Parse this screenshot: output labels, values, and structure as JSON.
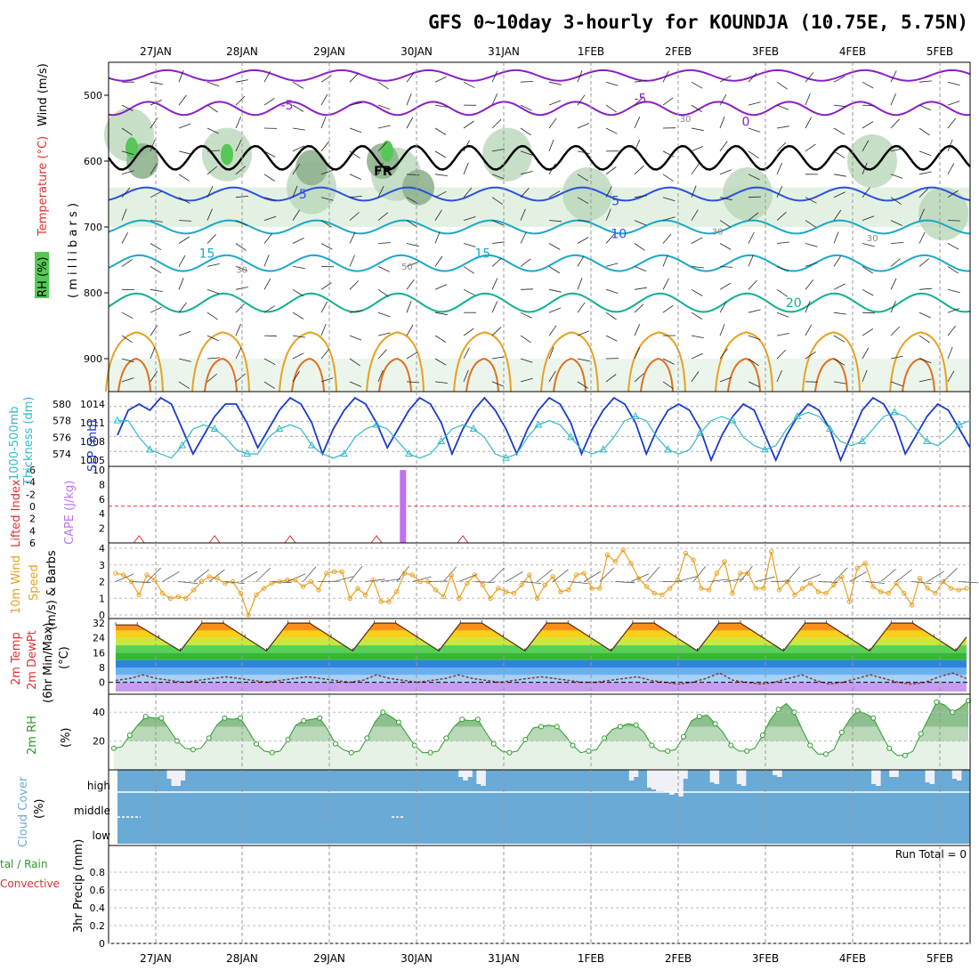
{
  "title": "GFS 0~10day 3-hourly for KOUNDJA (10.75E, 5.75N)",
  "dates": [
    "27JAN",
    "28JAN",
    "29JAN",
    "30JAN",
    "31JAN",
    "1FEB",
    "2FEB",
    "3FEB",
    "4FEB",
    "5FEB"
  ],
  "colors": {
    "rh_fill_light": "#e3f1e3",
    "rh_fill_mid": "#b9d7b9",
    "rh_fill_dark": "#8fb38f",
    "rh_fill_green": "#57c857",
    "temp_purple": "#8a1ec8",
    "temp_blue": "#2a50e0",
    "temp_cyan": "#1aa8c8",
    "temp_teal": "#10b090",
    "temp_orange": "#e8a020",
    "freeze": "#000000",
    "slp_line": "#1a3cc8",
    "thickness_line": "#30b8c8",
    "cape_bar": "#c070f0",
    "lifted_index": "#e03030",
    "wind10": "#e8a020",
    "rh2m": "#2a9a2a",
    "cloud": "#6aaad6",
    "precip_conv": "#e03030",
    "precip_total": "#2a9a2a"
  },
  "chart_data": [
    {
      "id": "upper_air",
      "type": "contour",
      "ylabel_parts": [
        "RH (%)",
        "Temperature (°C)",
        "Wind (m/s)"
      ],
      "ylabel_units": "( m i l l i b a r s )",
      "yticks": [
        500,
        600,
        700,
        800,
        900
      ],
      "ylim": [
        950,
        450
      ],
      "contour_labels": [
        {
          "label": "-5",
          "x": 0.2,
          "y": 515,
          "color": "temp_purple"
        },
        {
          "label": "-5",
          "x": 0.61,
          "y": 505,
          "color": "temp_purple"
        },
        {
          "label": "0",
          "x": 0.735,
          "y": 540,
          "color": "temp_purple"
        },
        {
          "label": "30",
          "x": 0.663,
          "y": 534,
          "color": "gray"
        },
        {
          "label": "FR",
          "x": 0.308,
          "y": 615,
          "color": "freeze"
        },
        {
          "label": "5",
          "x": 0.221,
          "y": 650,
          "color": "temp_blue"
        },
        {
          "label": "5",
          "x": 0.584,
          "y": 660,
          "color": "temp_blue"
        },
        {
          "label": "10",
          "x": 0.583,
          "y": 710,
          "color": "temp_blue"
        },
        {
          "label": "15",
          "x": 0.105,
          "y": 740,
          "color": "temp_cyan"
        },
        {
          "label": "15",
          "x": 0.425,
          "y": 740,
          "color": "temp_cyan"
        },
        {
          "label": "20",
          "x": 0.786,
          "y": 815,
          "color": "temp_teal"
        },
        {
          "label": "30",
          "x": 0.148,
          "y": 763,
          "color": "gray"
        },
        {
          "label": "50",
          "x": 0.34,
          "y": 758,
          "color": "gray"
        },
        {
          "label": "30",
          "x": 0.7,
          "y": 705,
          "color": "gray"
        },
        {
          "label": "30",
          "x": 0.88,
          "y": 715,
          "color": "gray"
        }
      ]
    },
    {
      "id": "slp_thickness",
      "type": "line",
      "ylabel_left": "1000-500mb Thickness (dm)",
      "ylabel_right": "SLP (mb)",
      "left_ticks": [
        574,
        576,
        578,
        580
      ],
      "right_ticks": [
        1005,
        1008,
        1011,
        1014
      ],
      "series": [
        {
          "name": "SLP",
          "color": "slp_line",
          "ylim": [
            1004,
            1016
          ],
          "values": [
            1009,
            1013,
            1014,
            1013,
            1015,
            1014,
            1010,
            1006,
            1009,
            1012,
            1014,
            1014,
            1011,
            1007,
            1010,
            1013,
            1015,
            1014,
            1011,
            1006,
            1010,
            1013,
            1015,
            1014,
            1011,
            1007,
            1010,
            1013,
            1015,
            1014,
            1011,
            1006,
            1010,
            1013,
            1015,
            1013,
            1010,
            1006,
            1010,
            1013,
            1015,
            1014,
            1011,
            1006,
            1010,
            1013,
            1015,
            1014,
            1011,
            1006,
            1010,
            1013,
            1014,
            1013,
            1010,
            1005,
            1009,
            1012,
            1014,
            1013,
            1009,
            1005,
            1009,
            1012,
            1014,
            1013,
            1010,
            1005,
            1009,
            1013,
            1015,
            1014,
            1011,
            1006,
            1009,
            1012,
            1014,
            1013,
            1010,
            1007
          ]
        },
        {
          "name": "Thickness",
          "color": "thickness_line",
          "ylim": [
            572.5,
            581.5
          ],
          "values": [
            578,
            578,
            576,
            574.5,
            574,
            573.5,
            575,
            577,
            577.5,
            577,
            576,
            574.5,
            574,
            574,
            576,
            577,
            577.5,
            577,
            575,
            574,
            573.5,
            574,
            576,
            577,
            577.5,
            577,
            575.5,
            574,
            573.5,
            574,
            575.5,
            577,
            577.5,
            577,
            576,
            574,
            573.5,
            574,
            576,
            577.5,
            578,
            577.5,
            576,
            574.5,
            574,
            574.5,
            576,
            578,
            578.5,
            578,
            576,
            574.5,
            574,
            574.5,
            576.5,
            578,
            578.5,
            578,
            576,
            575,
            574.5,
            575,
            577,
            578.5,
            579,
            578.5,
            577,
            575.5,
            575,
            575.5,
            577,
            578.5,
            579,
            578.5,
            577,
            575.5,
            575,
            576,
            577.5,
            578
          ]
        }
      ]
    },
    {
      "id": "cape_li",
      "type": "bar",
      "ylabel_left": "Lifted Index",
      "ylabel_right": "CAPE (J/kg)",
      "left_ticks": [
        "-6",
        "-4",
        "-2",
        "0",
        "2",
        "4",
        "6"
      ],
      "right_ticks": [
        2,
        4,
        6,
        8,
        10
      ],
      "bars": [
        {
          "x_index": 26,
          "value": 10
        }
      ],
      "li_bumps": [
        2,
        9,
        16,
        24,
        32
      ]
    },
    {
      "id": "wind10m",
      "type": "line",
      "ylabel": "10m Wind Speed (m/s) & Barbs",
      "yticks": [
        0,
        1,
        2,
        3,
        4
      ],
      "ylim": [
        0,
        4
      ],
      "values": [
        2.5,
        2.4,
        2.0,
        1.2,
        2.4,
        2.1,
        1.3,
        1.0,
        1.1,
        1.0,
        1.5,
        2.0,
        2.3,
        2.2,
        1.9,
        2.0,
        1.3,
        0.0,
        1.2,
        1.6,
        1.9,
        2.0,
        2.1,
        2.1,
        1.7,
        2.0,
        1.5,
        2.5,
        2.6,
        2.6,
        1.0,
        1.6,
        1.2,
        2.1,
        0.8,
        0.8,
        1.4,
        2.5,
        2.4,
        2.0,
        2.0,
        1.5,
        1.1,
        2.4,
        1.0,
        1.9,
        2.4,
        1.8,
        1.0,
        1.6,
        1.4,
        1.3,
        1.8,
        2.4,
        1.0,
        1.8,
        2.3,
        1.4,
        1.5,
        2.4,
        2.5,
        1.6,
        1.6,
        3.6,
        3.2,
        3.9,
        3.1,
        2.2,
        1.7,
        1.3,
        1.2,
        1.6,
        2.1,
        3.7,
        3.3,
        1.6,
        1.5,
        2.5,
        3.2,
        1.3,
        2.5,
        2.5,
        1.6,
        1.6,
        3.8,
        1.5,
        2.0,
        1.2,
        1.6,
        1.9,
        1.4,
        1.3,
        1.8,
        2.3,
        0.8,
        2.8,
        3.1,
        1.7,
        1.4,
        1.3,
        1.9,
        1.3,
        0.6,
        2.2,
        1.6,
        1.3,
        2.0,
        1.6,
        1.5,
        1.6
      ]
    },
    {
      "id": "temp2m",
      "type": "area",
      "ylabel": "2m Temp 2m DewPt (6hr Min/Max) (°C)",
      "yticks": [
        0,
        8,
        16,
        24,
        32
      ],
      "ylim": [
        -5,
        33
      ],
      "day_highs": [
        31,
        32,
        32,
        32,
        32,
        32,
        32,
        32,
        32,
        32
      ],
      "night_lows": [
        17,
        17,
        17,
        17,
        17,
        17,
        17,
        17,
        17,
        17
      ],
      "dewpoint": [
        1,
        2,
        4,
        2,
        1,
        0,
        1,
        2,
        3,
        2,
        1,
        0,
        1,
        2,
        3,
        2,
        1,
        0,
        1,
        4,
        2,
        1,
        0,
        1,
        2,
        4,
        2,
        1,
        0,
        1,
        2,
        3,
        2,
        1,
        0,
        0,
        1,
        2,
        3,
        1,
        0,
        -1,
        0,
        2,
        5,
        1,
        0,
        -1,
        0,
        2,
        4,
        1,
        -1,
        0,
        2,
        4,
        2,
        0,
        -1,
        0,
        3,
        5,
        2
      ]
    },
    {
      "id": "rh2m",
      "type": "area",
      "ylabel": "2m RH (%)",
      "yticks": [
        20,
        40
      ],
      "ylim": [
        0,
        50
      ],
      "values": [
        15,
        16,
        24,
        31,
        37,
        36,
        36,
        28,
        20,
        15,
        14,
        15,
        22,
        31,
        36,
        35,
        36,
        27,
        18,
        13,
        12,
        13,
        21,
        31,
        34,
        35,
        36,
        28,
        18,
        14,
        12,
        13,
        22,
        33,
        40,
        37,
        33,
        25,
        17,
        12,
        12,
        13,
        22,
        30,
        35,
        34,
        35,
        26,
        18,
        13,
        12,
        13,
        21,
        29,
        30,
        31,
        30,
        24,
        17,
        12,
        13,
        14,
        22,
        28,
        30,
        32,
        31,
        26,
        17,
        13,
        13,
        14,
        23,
        34,
        37,
        38,
        32,
        26,
        17,
        13,
        13,
        15,
        24,
        35,
        42,
        46,
        40,
        28,
        17,
        11,
        11,
        14,
        26,
        35,
        41,
        39,
        36,
        25,
        15,
        10,
        10,
        13,
        25,
        36,
        47,
        45,
        40,
        43,
        48
      ]
    },
    {
      "id": "cloud",
      "type": "area",
      "ylabel": "Cloud Cover (%)",
      "levels": [
        "high",
        "middle",
        "low"
      ],
      "high": [
        0,
        0,
        0,
        0,
        0,
        0,
        0,
        0,
        0,
        0,
        0,
        10,
        18,
        18,
        12,
        0,
        0,
        0,
        0,
        0,
        0,
        0,
        0,
        0,
        0,
        0,
        0,
        0,
        0,
        0,
        0,
        0,
        0,
        0,
        0,
        0,
        0,
        0,
        0,
        0,
        0,
        0,
        0,
        0,
        0,
        0,
        0,
        0,
        0,
        0,
        0,
        0,
        0,
        0,
        0,
        0,
        0,
        0,
        0,
        0,
        0,
        0,
        0,
        0,
        0,
        0,
        0,
        0,
        0,
        0,
        0,
        0,
        0,
        0,
        0,
        0,
        8,
        12,
        8,
        0,
        16,
        18,
        0,
        0,
        0,
        0,
        0,
        0,
        0,
        0,
        0,
        0,
        0,
        0,
        0,
        0,
        0,
        0,
        0,
        0,
        0,
        0,
        0,
        0,
        0,
        0,
        0,
        0,
        0,
        0,
        0,
        0,
        0,
        0,
        12,
        8,
        0,
        0,
        20,
        22,
        24,
        24,
        25,
        28,
        26,
        30,
        10,
        0,
        0,
        0,
        0,
        0,
        14,
        16,
        0,
        0,
        0,
        0,
        16,
        18,
        0,
        0,
        0,
        0,
        0,
        0,
        6,
        8,
        0,
        0,
        0,
        0,
        0,
        0,
        0,
        0,
        0,
        0,
        0,
        0,
        0,
        0,
        0,
        0,
        0,
        0,
        0,
        0,
        16,
        18,
        0,
        0,
        8,
        8,
        0,
        0,
        0,
        0,
        0,
        0,
        14,
        16,
        0,
        0,
        0,
        0,
        10,
        12,
        0,
        0
      ]
    },
    {
      "id": "precip",
      "type": "bar",
      "ylabel_left": "3hr Precip (mm)",
      "legend": [
        "Total / Rain",
        "Convective"
      ],
      "yticks": [
        "0",
        "0.2",
        "0.4",
        "0.6",
        "0.8"
      ],
      "ylim": [
        0,
        1
      ],
      "run_total": "Run Total = 0",
      "values": []
    }
  ],
  "labels": {
    "upper_rh": "RH (%)",
    "upper_temp": "Temperature (°C)",
    "upper_wind": "Wind (m/s)",
    "upper_units": "( m i l l i b a r s )",
    "thick1": "1000-500mb",
    "thick2": "Thickness (dm)",
    "slp": "SLP (mb)",
    "li": "Lifted Index",
    "cape": "CAPE (J/kg)",
    "w1": "10m Wind",
    "w2": "Speed",
    "w3": "(m/s) & Barbs",
    "t1": "2m Temp",
    "t2": "2m DewPt",
    "t3": "(6hr Min/Max)",
    "t4": "(°C)",
    "rh1": "2m RH",
    "rh2": "(%)",
    "cc1": "Cloud Cover",
    "cc2": "(%)",
    "cc_high": "high",
    "cc_mid": "middle",
    "cc_low": "low",
    "pr1": "tal / Rain",
    "pr2": "Convective",
    "pr3": "3hr Precip (mm)",
    "run_total": "Run Total = 0"
  }
}
